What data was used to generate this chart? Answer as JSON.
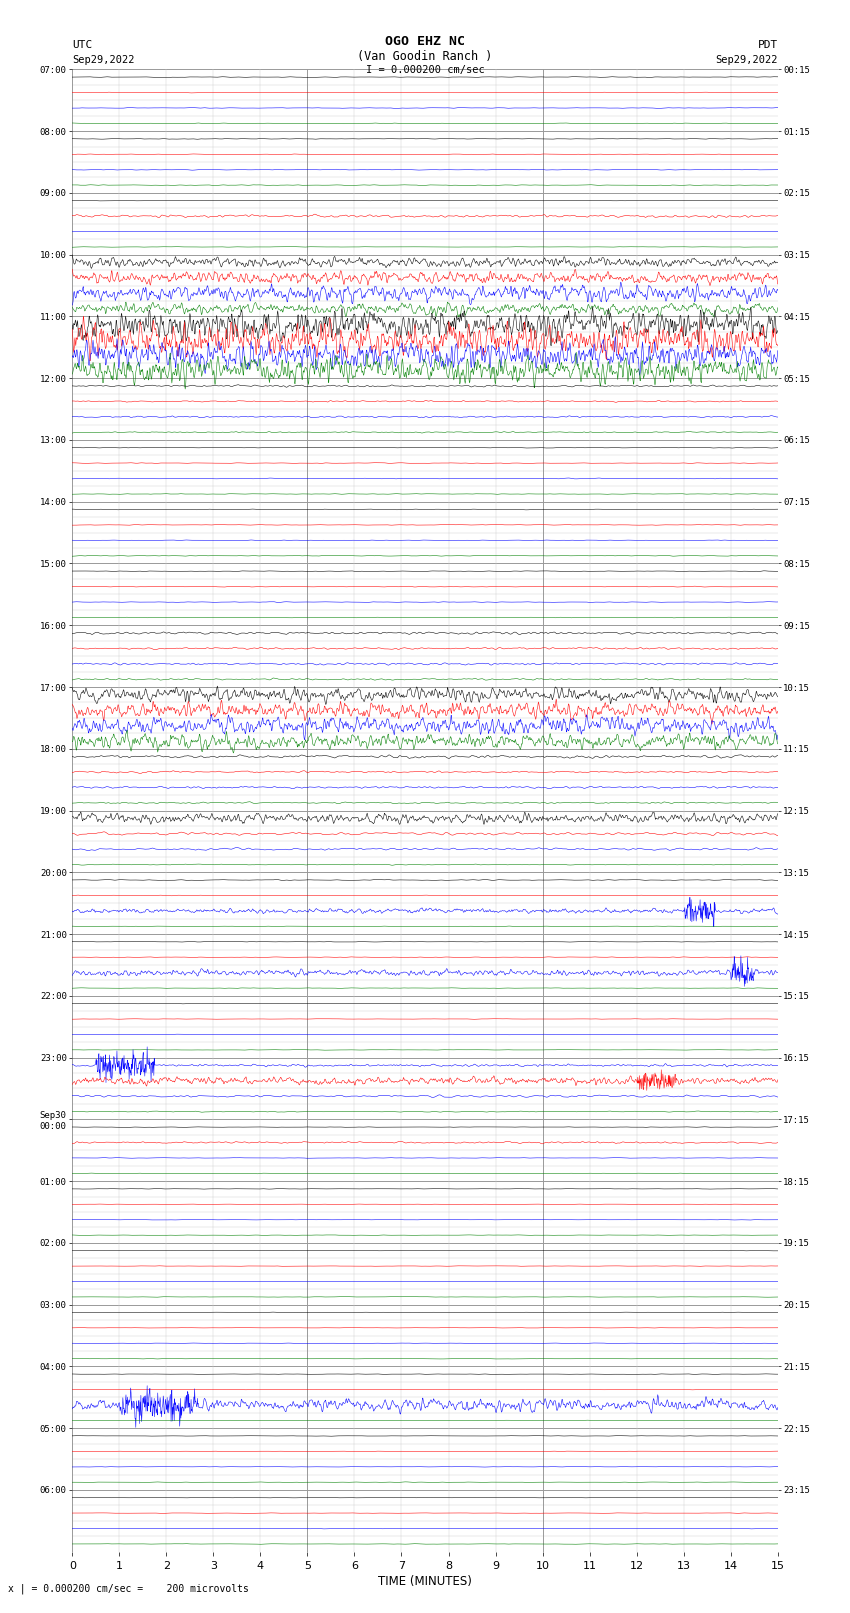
{
  "title_line1": "OGO EHZ NC",
  "title_line2": "(Van Goodin Ranch )",
  "scale_label": "I = 0.000200 cm/sec",
  "left_label_top": "UTC",
  "left_label_date": "Sep29,2022",
  "right_label_top": "PDT",
  "right_label_date": "Sep29,2022",
  "bottom_label": "TIME (MINUTES)",
  "bottom_note": "x | = 0.000200 cm/sec =    200 microvolts",
  "xlabel_ticks": [
    0,
    1,
    2,
    3,
    4,
    5,
    6,
    7,
    8,
    9,
    10,
    11,
    12,
    13,
    14,
    15
  ],
  "figure_width": 8.5,
  "figure_height": 16.13,
  "dpi": 100,
  "utc_times": [
    "07:00",
    "08:00",
    "09:00",
    "10:00",
    "11:00",
    "12:00",
    "13:00",
    "14:00",
    "15:00",
    "16:00",
    "17:00",
    "18:00",
    "19:00",
    "20:00",
    "21:00",
    "22:00",
    "23:00",
    "Sep30\n00:00",
    "01:00",
    "02:00",
    "03:00",
    "04:00",
    "05:00",
    "06:00"
  ],
  "pdt_times": [
    "00:15",
    "01:15",
    "02:15",
    "03:15",
    "04:15",
    "05:15",
    "06:15",
    "07:15",
    "08:15",
    "09:15",
    "10:15",
    "11:15",
    "12:15",
    "13:15",
    "14:15",
    "15:15",
    "16:15",
    "17:15",
    "18:15",
    "19:15",
    "20:15",
    "21:15",
    "22:15",
    "23:15"
  ],
  "n_rows": 96,
  "colors_cycle": [
    "black",
    "red",
    "blue",
    "green"
  ],
  "background_color": "white",
  "grid_color": "#999999",
  "grid_minor_color": "#cccccc"
}
